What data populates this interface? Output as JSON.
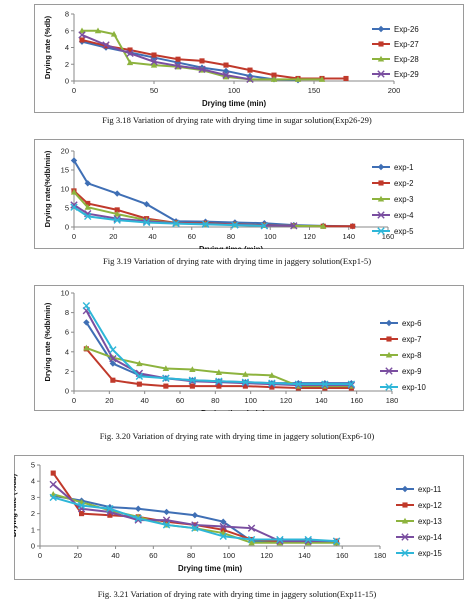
{
  "charts": [
    {
      "caption": "Fig 3.18 Variation of drying rate with drying time in sugar solution(Exp26-29)",
      "chart_data": {
        "type": "line",
        "xlabel": "Drying time (min)",
        "ylabel": "Drying rate (%db)",
        "xlim": [
          0,
          200
        ],
        "ylim": [
          0,
          8
        ],
        "xticks": [
          0,
          50,
          100,
          150,
          200
        ],
        "yticks": [
          0,
          2,
          4,
          6,
          8
        ],
        "legend_position": "right",
        "series": [
          {
            "name": "Exp-26",
            "color": "#3f6fb5",
            "marker": "diamond",
            "x": [
              5,
              20,
              35,
              50,
              65,
              80,
              95,
              110,
              125,
              140
            ],
            "y": [
              4.7,
              4.0,
              3.4,
              2.8,
              2.2,
              1.6,
              1.2,
              0.6,
              0.2,
              0.1
            ]
          },
          {
            "name": "Exp-27",
            "color": "#c0392b",
            "marker": "square",
            "x": [
              5,
              20,
              35,
              50,
              65,
              80,
              95,
              110,
              125,
              140,
              155,
              170
            ],
            "y": [
              4.9,
              4.2,
              3.7,
              3.1,
              2.6,
              2.4,
              1.9,
              1.3,
              0.7,
              0.3,
              0.3,
              0.3
            ]
          },
          {
            "name": "Exp-28",
            "color": "#8db33e",
            "marker": "triangle",
            "x": [
              5,
              15,
              25,
              35,
              50,
              65,
              80,
              95,
              110,
              125,
              140,
              155
            ],
            "y": [
              6.0,
              6.0,
              5.6,
              2.2,
              1.9,
              1.7,
              1.3,
              0.5,
              0.2,
              0.2,
              0.2,
              0.2
            ]
          },
          {
            "name": "Exp-29",
            "color": "#7a4ea0",
            "marker": "x",
            "x": [
              5,
              20,
              35,
              50,
              65,
              80,
              95,
              110
            ],
            "y": [
              5.5,
              4.3,
              3.3,
              2.3,
              1.8,
              1.4,
              0.7,
              0.2
            ]
          }
        ]
      }
    },
    {
      "caption": "Fig 3.19 Variation of drying rate with drying time in jaggery solution(Exp1-5)",
      "chart_data": {
        "type": "line",
        "xlabel": "Drying time (min)",
        "ylabel": "Drying rate(%db/min)",
        "xlim": [
          0,
          160
        ],
        "ylim": [
          0,
          20
        ],
        "xticks": [
          0,
          20,
          40,
          60,
          80,
          100,
          120,
          140,
          160
        ],
        "yticks": [
          0,
          5,
          10,
          15,
          20
        ],
        "legend_position": "right",
        "series": [
          {
            "name": "exp-1",
            "color": "#3f6fb5",
            "marker": "diamond",
            "x": [
              0,
              7,
              22,
              37,
              52,
              67,
              82,
              97,
              112,
              127,
              142
            ],
            "y": [
              17.5,
              11.5,
              8.8,
              6.0,
              1.5,
              1.4,
              1.2,
              1.0,
              0.5,
              0.3,
              0.2
            ]
          },
          {
            "name": "exp-2",
            "color": "#c0392b",
            "marker": "square",
            "x": [
              0,
              7,
              22,
              37,
              52,
              67,
              82,
              97,
              112,
              127,
              142
            ],
            "y": [
              9.5,
              6.2,
              4.5,
              2.2,
              1.1,
              1.0,
              0.7,
              0.5,
              0.3,
              0.2,
              0.2
            ]
          },
          {
            "name": "exp-3",
            "color": "#8db33e",
            "marker": "triangle",
            "x": [
              0,
              7,
              22,
              37,
              52,
              67,
              82,
              97,
              112,
              127
            ],
            "y": [
              9.2,
              5.2,
              3.4,
              1.8,
              1.0,
              0.8,
              0.6,
              0.4,
              0.3,
              0.2
            ]
          },
          {
            "name": "exp-4",
            "color": "#7a4ea0",
            "marker": "x",
            "x": [
              0,
              7,
              22,
              37,
              52,
              67,
              82,
              97,
              112
            ],
            "y": [
              5.8,
              3.5,
              2.2,
              1.5,
              1.0,
              0.8,
              0.6,
              0.4,
              0.3
            ]
          },
          {
            "name": "exp-5",
            "color": "#2eb6d8",
            "marker": "x",
            "x": [
              0,
              7,
              22,
              37,
              52,
              67,
              82,
              97
            ],
            "y": [
              5.2,
              2.8,
              1.8,
              1.2,
              0.9,
              0.7,
              0.5,
              0.3
            ]
          }
        ]
      }
    },
    {
      "caption": "Fig. 3.20 Variation of drying rate with drying time in jaggery solution(Exp6-10)",
      "chart_data": {
        "type": "line",
        "xlabel": "Drying time (min)",
        "ylabel": "Drying rate (%db/min)",
        "xlim": [
          0,
          180
        ],
        "ylim": [
          0,
          10
        ],
        "xticks": [
          0,
          20,
          40,
          60,
          80,
          100,
          120,
          140,
          160,
          180
        ],
        "yticks": [
          0,
          2,
          4,
          6,
          8,
          10
        ],
        "legend_position": "right",
        "series": [
          {
            "name": "exp-6",
            "color": "#3f6fb5",
            "marker": "diamond",
            "x": [
              7,
              22,
              37,
              52,
              67,
              82,
              97,
              112,
              127,
              142,
              157
            ],
            "y": [
              7.0,
              2.8,
              1.6,
              1.3,
              1.1,
              1.0,
              0.9,
              0.8,
              0.8,
              0.8,
              0.8
            ]
          },
          {
            "name": "exp-7",
            "color": "#c0392b",
            "marker": "square",
            "x": [
              7,
              22,
              37,
              52,
              67,
              82,
              97,
              112,
              127,
              142,
              157
            ],
            "y": [
              4.3,
              1.1,
              0.7,
              0.5,
              0.5,
              0.5,
              0.5,
              0.4,
              0.3,
              0.3,
              0.3
            ]
          },
          {
            "name": "exp-8",
            "color": "#8db33e",
            "marker": "triangle",
            "x": [
              7,
              22,
              37,
              52,
              67,
              82,
              97,
              112,
              127,
              142,
              157
            ],
            "y": [
              4.4,
              3.4,
              2.8,
              2.3,
              2.2,
              1.9,
              1.7,
              1.6,
              0.5,
              0.5,
              0.5
            ]
          },
          {
            "name": "exp-9",
            "color": "#7a4ea0",
            "marker": "x",
            "x": [
              7,
              22,
              37,
              52,
              67,
              82,
              97,
              112,
              127,
              142,
              157
            ],
            "y": [
              8.2,
              3.3,
              1.8,
              1.3,
              1.0,
              0.9,
              0.8,
              0.7,
              0.6,
              0.6,
              0.6
            ]
          },
          {
            "name": "exp-10",
            "color": "#2eb6d8",
            "marker": "x",
            "x": [
              7,
              22,
              37,
              52,
              67,
              82,
              97,
              112,
              127,
              142,
              157
            ],
            "y": [
              8.7,
              4.2,
              1.5,
              1.3,
              1.1,
              1.0,
              0.9,
              0.8,
              0.7,
              0.7,
              0.7
            ]
          }
        ]
      }
    },
    {
      "caption": "Fig. 3.21  Variation of drying rate with drying time in jaggery solution(Exp11-15)",
      "chart_data": {
        "type": "line",
        "xlabel": "Drying time (min)",
        "ylabel": "Drying rate (%db)",
        "xlim": [
          0,
          180
        ],
        "ylim": [
          0,
          5
        ],
        "xticks": [
          0,
          20,
          40,
          60,
          80,
          100,
          120,
          140,
          160,
          180
        ],
        "yticks": [
          0,
          1,
          2,
          3,
          4,
          5
        ],
        "legend_position": "right",
        "series": [
          {
            "name": "exp-11",
            "color": "#3f6fb5",
            "marker": "diamond",
            "x": [
              7,
              22,
              37,
              52,
              67,
              82,
              97,
              112,
              127,
              142,
              157
            ],
            "y": [
              3.1,
              2.8,
              2.4,
              2.3,
              2.1,
              1.9,
              1.5,
              0.3,
              0.3,
              0.3,
              0.2
            ]
          },
          {
            "name": "exp-12",
            "color": "#c0392b",
            "marker": "square",
            "x": [
              7,
              22,
              37,
              52,
              67,
              82,
              97,
              112,
              127,
              142,
              157
            ],
            "y": [
              4.5,
              2.0,
              1.9,
              1.8,
              1.5,
              1.3,
              1.0,
              0.4,
              0.3,
              0.3,
              0.3
            ]
          },
          {
            "name": "exp-13",
            "color": "#8db33e",
            "marker": "triangle",
            "x": [
              7,
              22,
              37,
              52,
              67,
              82,
              97,
              112,
              127,
              142,
              157
            ],
            "y": [
              3.2,
              2.7,
              2.2,
              1.8,
              1.3,
              1.1,
              0.8,
              0.2,
              0.2,
              0.2,
              0.2
            ]
          },
          {
            "name": "exp-14",
            "color": "#7a4ea0",
            "marker": "x",
            "x": [
              7,
              22,
              37,
              52,
              67,
              82,
              97,
              112,
              127,
              142,
              157
            ],
            "y": [
              3.8,
              2.3,
              2.1,
              1.6,
              1.6,
              1.3,
              1.2,
              1.1,
              0.3,
              0.3,
              0.3
            ]
          },
          {
            "name": "exp-15",
            "color": "#2eb6d8",
            "marker": "x",
            "x": [
              7,
              22,
              37,
              52,
              67,
              82,
              97,
              112,
              127,
              142,
              157
            ],
            "y": [
              3.0,
              2.5,
              2.3,
              1.7,
              1.3,
              1.1,
              0.6,
              0.4,
              0.4,
              0.4,
              0.3
            ]
          }
        ]
      }
    }
  ]
}
